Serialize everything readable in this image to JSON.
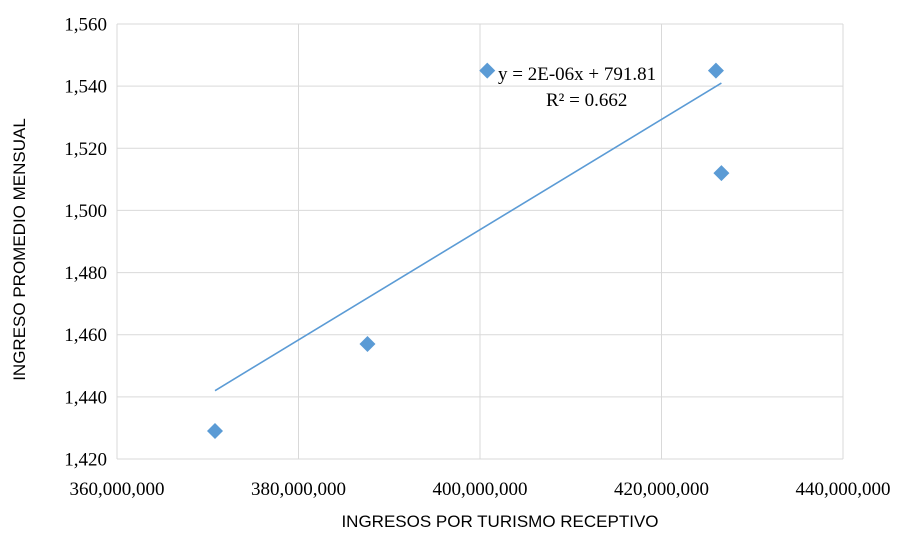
{
  "chart_data": {
    "type": "scatter",
    "title": "",
    "xlabel": "INGRESOS POR TURISMO RECEPTIVO",
    "ylabel": "INGRESO PROMEDIO MENSUAL",
    "xlim": [
      360000000,
      440000000
    ],
    "ylim": [
      1420,
      1560
    ],
    "x_ticks": [
      360000000,
      380000000,
      400000000,
      420000000,
      440000000
    ],
    "x_tick_labels": [
      "360,000,000",
      "380,000,000",
      "400,000,000",
      "420,000,000",
      "440,000,000"
    ],
    "y_ticks": [
      1420,
      1440,
      1460,
      1480,
      1500,
      1520,
      1540,
      1560
    ],
    "y_tick_labels": [
      "1,420",
      "1,440",
      "1,460",
      "1,480",
      "1,500",
      "1,520",
      "1,540",
      "1,560"
    ],
    "grid": true,
    "legend": "none",
    "series": [
      {
        "marker": "diamond",
        "color": "#5b9bd5",
        "points": [
          {
            "x": 370800000,
            "y": 1429
          },
          {
            "x": 387600000,
            "y": 1457
          },
          {
            "x": 400800000,
            "y": 1545
          },
          {
            "x": 426000000,
            "y": 1545
          },
          {
            "x": 426600000,
            "y": 1512
          }
        ]
      }
    ],
    "trendline": {
      "type": "linear",
      "color": "#5b9bd5",
      "x_range": [
        370800000,
        426600000
      ],
      "y_at_start": 1442,
      "y_at_end": 1541,
      "equation": "y = 2E-06x + 791.81",
      "r_squared": "R² = 0.662"
    }
  }
}
